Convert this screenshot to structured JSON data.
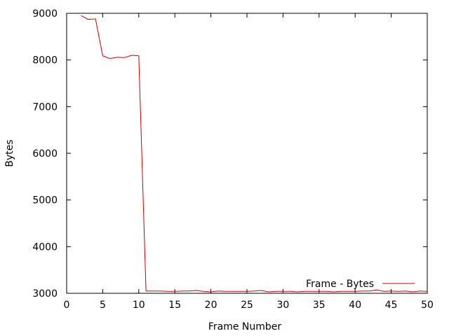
{
  "chart_data": {
    "type": "line",
    "title": "",
    "xlabel": "Frame Number",
    "ylabel": "Bytes",
    "xlim": [
      0,
      50
    ],
    "ylim": [
      3000,
      9000
    ],
    "xticks": [
      0,
      5,
      10,
      15,
      20,
      25,
      30,
      35,
      40,
      45,
      50
    ],
    "yticks": [
      3000,
      4000,
      5000,
      6000,
      7000,
      8000,
      9000
    ],
    "grid": false,
    "legend_position": "bottom-right",
    "series": [
      {
        "name": "Frame - Bytes",
        "color": "#cc0000",
        "x": [
          2,
          3,
          4,
          5,
          6,
          7,
          8,
          9,
          10,
          11,
          12,
          13,
          14,
          15,
          16,
          17,
          18,
          19,
          20,
          21,
          22,
          23,
          24,
          25,
          26,
          27,
          28,
          29,
          30,
          31,
          32,
          33,
          34,
          35,
          36,
          37,
          38,
          39,
          40,
          41,
          42,
          43,
          44,
          45,
          46,
          47,
          48,
          49,
          50
        ],
        "y": [
          8950,
          8870,
          8880,
          8090,
          8030,
          8060,
          8050,
          8100,
          8090,
          3050,
          3050,
          3050,
          3040,
          3040,
          3050,
          3050,
          3060,
          3040,
          3030,
          3050,
          3040,
          3040,
          3040,
          3040,
          3050,
          3060,
          3030,
          3040,
          3040,
          3040,
          3030,
          3040,
          3040,
          3040,
          3040,
          3030,
          3040,
          3040,
          3040,
          3050,
          3050,
          3070,
          3040,
          3050,
          3040,
          3050,
          3030,
          3050,
          3040
        ]
      }
    ]
  }
}
